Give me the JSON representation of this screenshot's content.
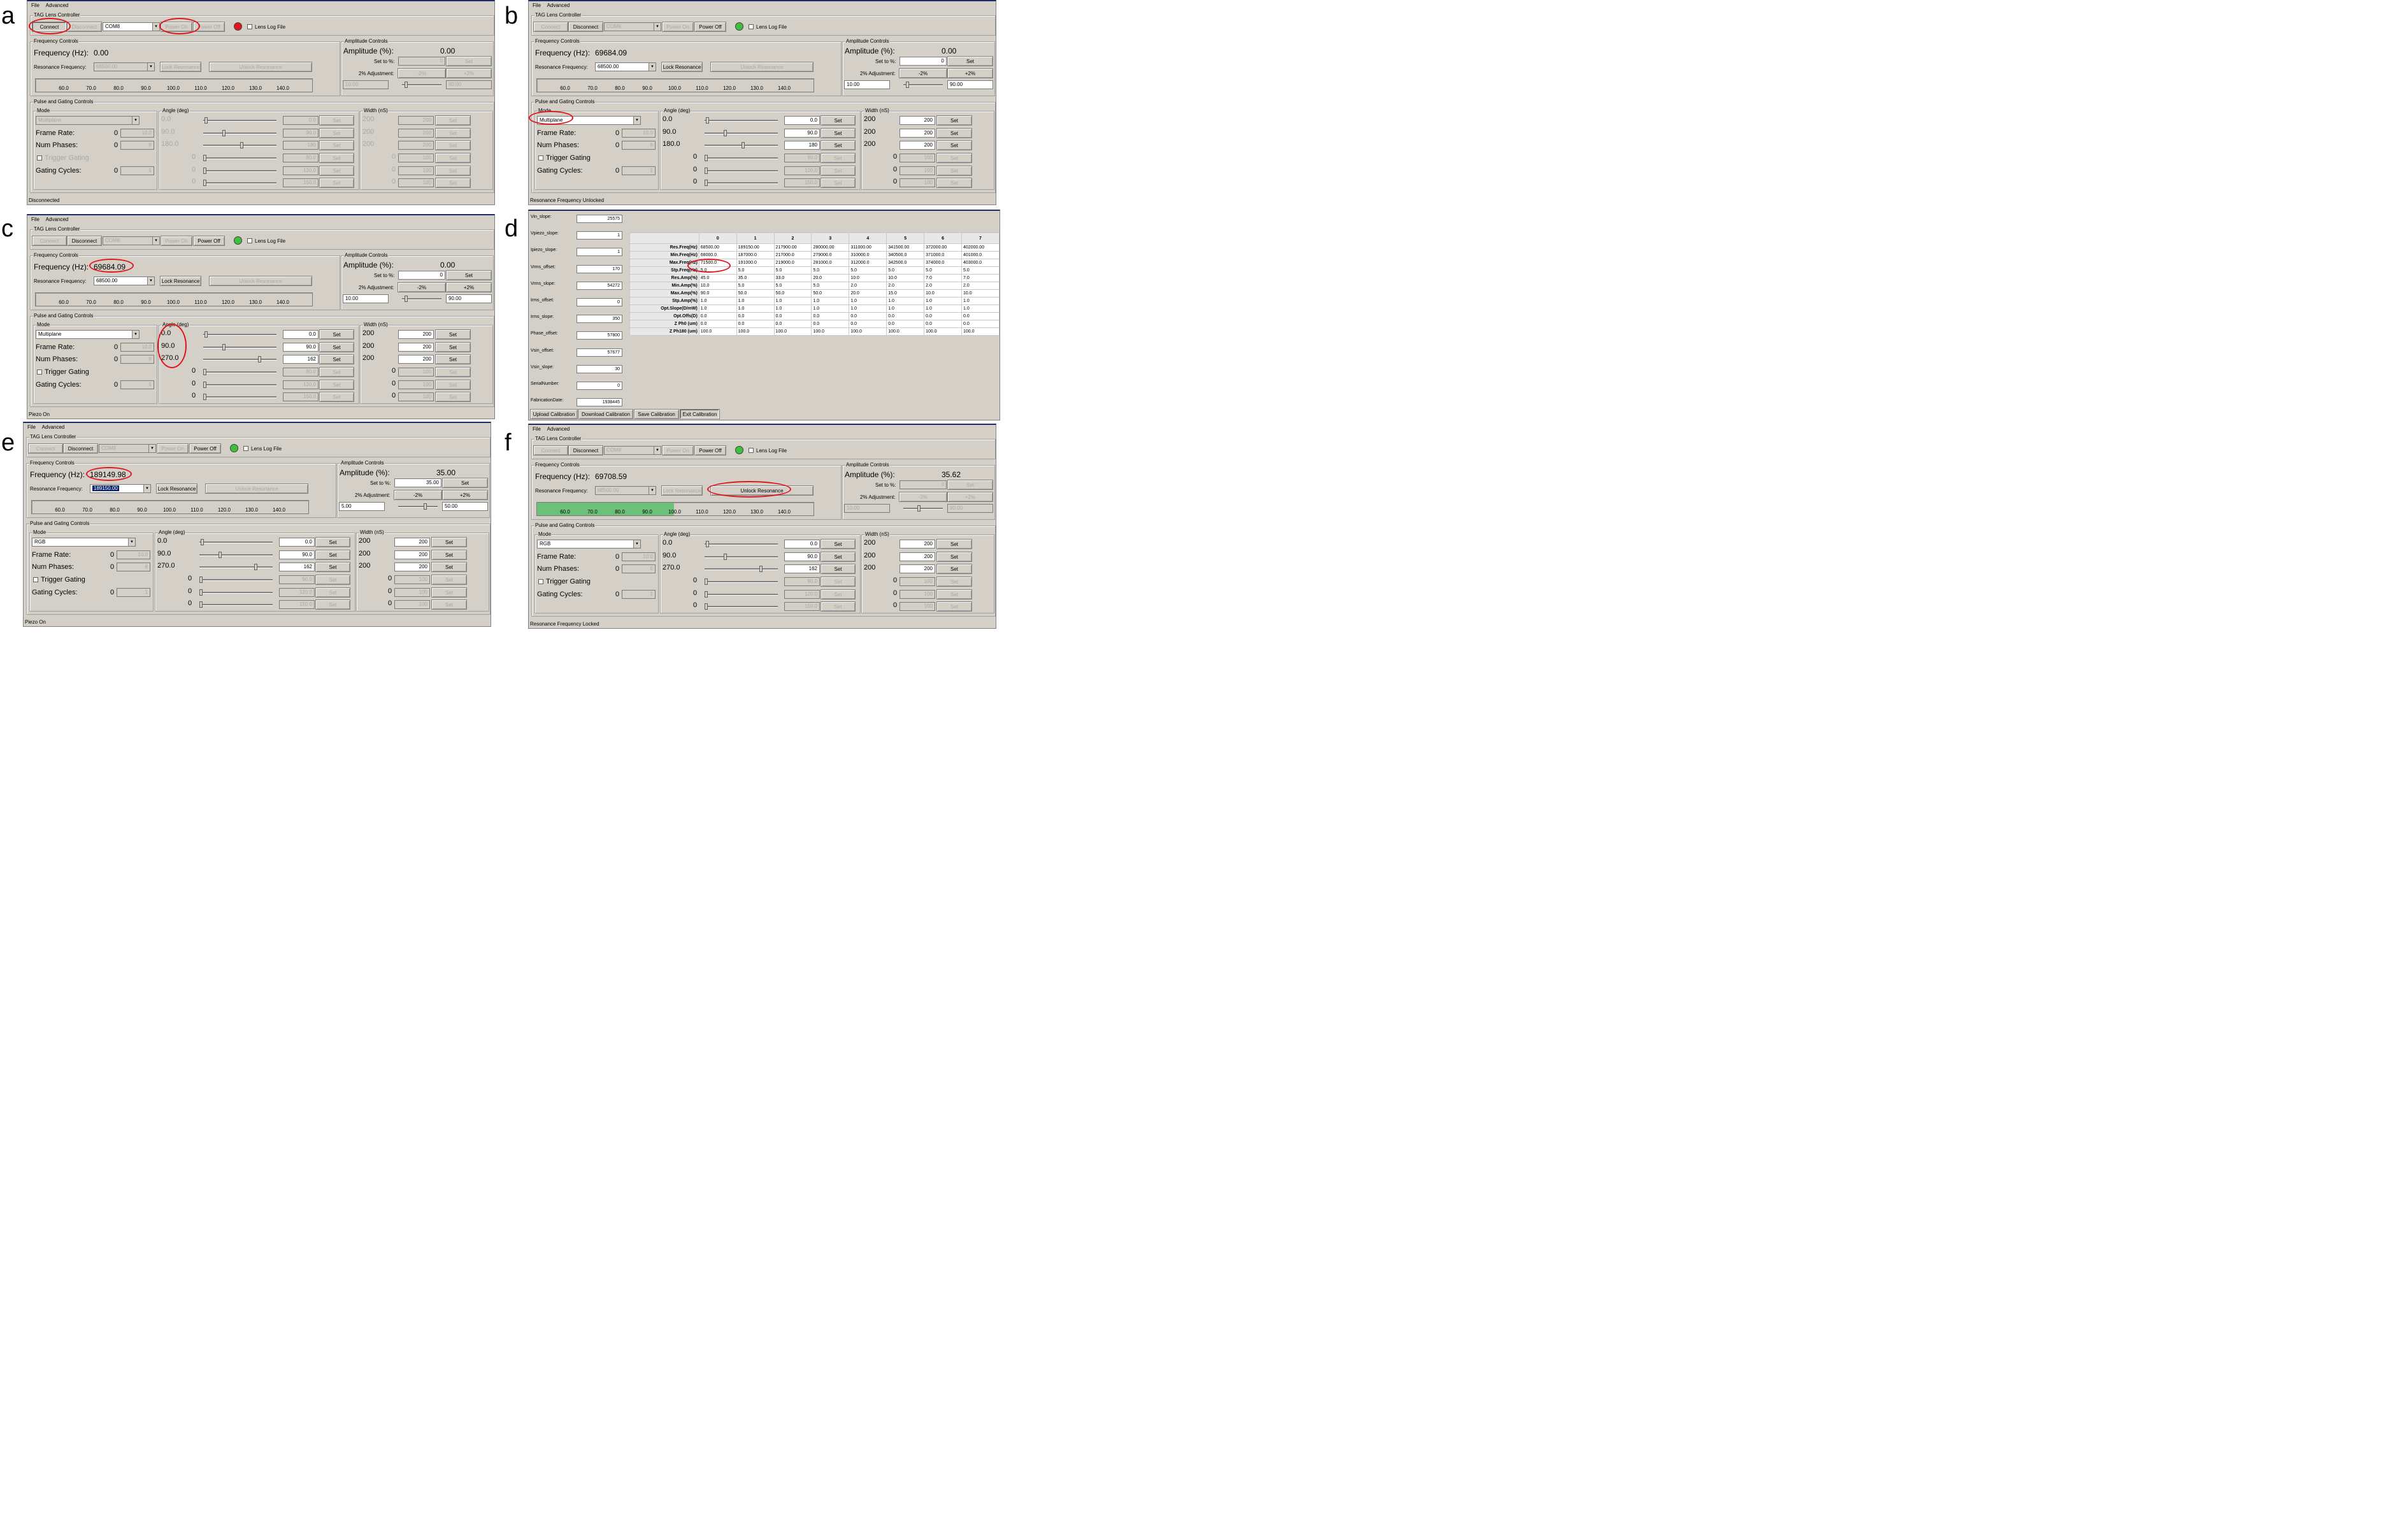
{
  "labels": {
    "a": "a",
    "b": "b",
    "c": "c",
    "d": "d",
    "e": "e",
    "f": "f"
  },
  "menu": {
    "file": "File",
    "advanced": "Advanced"
  },
  "common": {
    "window_title": "TAG Lens Controller",
    "connect": "Connect",
    "disconnect": "Disconnect",
    "com_port": "COM8",
    "power_on": "Power On",
    "power_off": "Power Off",
    "lens_log_file": "Lens Log File",
    "frequency_controls": "Frequency Controls",
    "frequency_label": "Frequency (Hz):",
    "resonance_frequency_label": "Resonance Frequency:",
    "lock_resonance": "Lock Resonance",
    "unlock_resonance": "Unlock Resonance",
    "amplitude_controls": "Amplitude Controls",
    "amplitude_label": "Amplitude (%):",
    "set_to_label": "Set to %:",
    "adjustment_label": "2% Adjustment:",
    "minus2": "-2%",
    "plus2": "+2%",
    "set": "Set",
    "pulse_gating": "Pulse and Gating Controls",
    "mode_label": "Mode",
    "frame_rate_label": "Frame Rate:",
    "num_phases_label": "Num Phases:",
    "trigger_gating_label": "Trigger Gating",
    "gating_cycles_label": "Gating Cycles:",
    "angle_label": "Angle (deg)",
    "width_label": "Width (nS)",
    "scale_ticks": [
      "60.0",
      "70.0",
      "80.0",
      "90.0",
      "100.0",
      "110.0",
      "120.0",
      "130.0",
      "140.0"
    ],
    "zero": "0",
    "frame_rate_value": "10.0",
    "num_phases_value": "6",
    "gating_cycles_value": "1",
    "width_static": [
      "200",
      "200",
      "200",
      "0",
      "0",
      "0"
    ],
    "width_inputs": [
      "200",
      "200",
      "200",
      "100",
      "100",
      "100"
    ],
    "extra_angles": [
      "90.0",
      "120.0",
      "150.0"
    ]
  },
  "panel_a": {
    "frequency": "0.00",
    "resonance": "68500.00",
    "amplitude": "0.00",
    "set_to": "0",
    "low": "10.00",
    "high": "90.00",
    "mode": "Multiplane",
    "angle_static": [
      "0.0",
      "90.0",
      "180.0",
      "0",
      "0",
      "0"
    ],
    "angle_inputs": [
      "0.0",
      "90.0",
      "180"
    ],
    "status": "Disconnected"
  },
  "panel_b": {
    "frequency": "69684.09",
    "resonance": "68500.00",
    "amplitude": "0.00",
    "set_to": "0",
    "low": "10.00",
    "high": "90.00",
    "mode": "Multiplane",
    "angle_static": [
      "0.0",
      "90.0",
      "180.0",
      "0",
      "0",
      "0"
    ],
    "angle_inputs": [
      "0.0",
      "90.0",
      "180"
    ],
    "status": "Resonance Frequency Unlocked"
  },
  "panel_c": {
    "frequency": "69684.09",
    "resonance": "68500.00",
    "amplitude": "0.00",
    "set_to": "0",
    "low": "10.00",
    "high": "90.00",
    "mode": "Multiplane",
    "angle_static": [
      "0.0",
      "90.0",
      "270.0",
      "0",
      "0",
      "0"
    ],
    "angle_inputs": [
      "0.0",
      "90.0",
      "162"
    ],
    "status": "Piezo On"
  },
  "panel_e": {
    "frequency": "189149.98",
    "resonance": "189150.00",
    "amplitude": "35.00",
    "set_to": "35.00",
    "low": "5.00",
    "high": "50.00",
    "mode": "RGB",
    "angle_static": [
      "0.0",
      "90.0",
      "270.0",
      "0",
      "0",
      "0"
    ],
    "angle_inputs": [
      "0.0",
      "90.0",
      "162"
    ],
    "status": "Piezo On"
  },
  "panel_f": {
    "frequency": "69708.59",
    "resonance": "68500.00",
    "amplitude": "35.62",
    "set_to": "0",
    "low": "10.00",
    "high": "90.00",
    "mode": "RGB",
    "angle_static": [
      "0.0",
      "90.0",
      "270.0",
      "0",
      "0",
      "0"
    ],
    "angle_inputs": [
      "0.0",
      "90.0",
      "162"
    ],
    "status": "Resonance Frequency Locked",
    "scale_fill_value": "100.0"
  },
  "panel_d": {
    "params": [
      {
        "label": "Vin_slope:",
        "value": "25575"
      },
      {
        "label": "Vpiezo_slope:",
        "value": "1"
      },
      {
        "label": "Ipiezo_slope:",
        "value": "1"
      },
      {
        "label": "Vrms_offset:",
        "value": "170"
      },
      {
        "label": "Vrms_slope:",
        "value": "54272"
      },
      {
        "label": "Irms_offset:",
        "value": "0"
      },
      {
        "label": "Irms_slope:",
        "value": "350"
      },
      {
        "label": "Phase_offset:",
        "value": "57800"
      },
      {
        "label": "Vsin_offset:",
        "value": "57677"
      },
      {
        "label": "Vsin_slope:",
        "value": "30"
      },
      {
        "label": "SerialNumber:",
        "value": "0"
      },
      {
        "label": "FabricationDate:",
        "value": "1938445"
      }
    ],
    "columns": [
      "0",
      "1",
      "2",
      "3",
      "4",
      "5",
      "6",
      "7"
    ],
    "rows": [
      {
        "label": "Res.Freq(Hz)",
        "values": [
          "68500.00",
          "189150.00",
          "217900.00",
          "280000.00",
          "311000.00",
          "341500.00",
          "372000.00",
          "402000.00"
        ]
      },
      {
        "label": "Min.Freq(Hz)",
        "values": [
          "68000.0",
          "187000.0",
          "217000.0",
          "279000.0",
          "310000.0",
          "340500.0",
          "371000.0",
          "401000.0"
        ]
      },
      {
        "label": "Max.Freq(Hz)",
        "values": [
          "71500.0",
          "191000.0",
          "219000.0",
          "281000.0",
          "312000.0",
          "342500.0",
          "374000.0",
          "403000.0"
        ]
      },
      {
        "label": "Stp.Freq(Hz)",
        "values": [
          "5.0",
          "5.0",
          "5.0",
          "5.0",
          "5.0",
          "5.0",
          "5.0",
          "5.0"
        ]
      },
      {
        "label": "Res.Amp(%)",
        "values": [
          "45.0",
          "35.0",
          "33.0",
          "20.0",
          "10.0",
          "10.0",
          "7.0",
          "7.0"
        ]
      },
      {
        "label": "Min.Amp(%)",
        "values": [
          "10.0",
          "5.0",
          "5.0",
          "5.0",
          "2.0",
          "2.0",
          "2.0",
          "2.0"
        ]
      },
      {
        "label": "Max.Amp(%)",
        "values": [
          "90.0",
          "50.0",
          "50.0",
          "50.0",
          "20.0",
          "15.0",
          "10.0",
          "10.0"
        ]
      },
      {
        "label": "Stp.Amp(%)",
        "values": [
          "1.0",
          "1.0",
          "1.0",
          "1.0",
          "1.0",
          "1.0",
          "1.0",
          "1.0"
        ]
      },
      {
        "label": "Opt.Slope(D/mW)",
        "values": [
          "1.0",
          "1.0",
          "1.0",
          "1.0",
          "1.0",
          "1.0",
          "1.0",
          "1.0"
        ]
      },
      {
        "label": "Opt.Offs(D)",
        "values": [
          "0.0",
          "0.0",
          "0.0",
          "0.0",
          "0.0",
          "0.0",
          "0.0",
          "0.0"
        ]
      },
      {
        "label": "Z Ph0 (um)",
        "values": [
          "0.0",
          "0.0",
          "0.0",
          "0.0",
          "0.0",
          "0.0",
          "0.0",
          "0.0"
        ]
      },
      {
        "label": "Z Ph180 (um)",
        "values": [
          "100.0",
          "100.0",
          "100.0",
          "100.0",
          "100.0",
          "100.0",
          "100.0",
          "100.0"
        ]
      }
    ],
    "buttons": {
      "upload": "Upload Calibration",
      "download": "Download Calibration",
      "save": "Save Calibration",
      "exit": "Exit Calibration"
    }
  },
  "colors": {
    "led_red": "#e0161e",
    "led_green": "#3fbf3f",
    "highlight": "#e0161e",
    "scale_fill": "#6cc07a"
  }
}
